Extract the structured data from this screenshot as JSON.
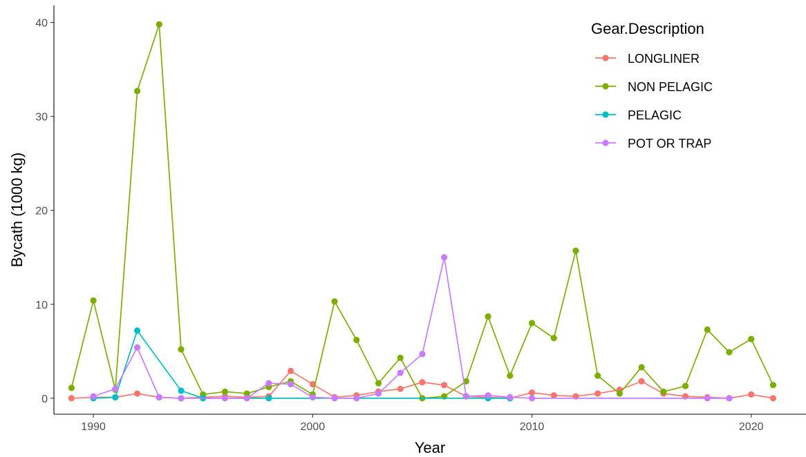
{
  "chart_data": {
    "type": "line",
    "xlabel": "Year",
    "ylabel": "Bycath (1000 kg)",
    "xlim": [
      1988.2,
      2022.5
    ],
    "ylim": [
      -1.7,
      41.8
    ],
    "x_ticks": [
      1990,
      2000,
      2010,
      2020
    ],
    "y_ticks": [
      0,
      10,
      20,
      30,
      40
    ],
    "grid": false,
    "legend": {
      "title": "Gear.Description",
      "position": "top-right"
    },
    "series": [
      {
        "name": "LONGLINER",
        "color": "#F8766D",
        "points": [
          [
            1989,
            0.0
          ],
          [
            1990,
            0.1
          ],
          [
            1991,
            0.1
          ],
          [
            1992,
            0.5
          ],
          [
            1993,
            0.1
          ],
          [
            1994,
            0.0
          ],
          [
            1995,
            0.1
          ],
          [
            1996,
            0.2
          ],
          [
            1997,
            0.1
          ],
          [
            1998,
            0.2
          ],
          [
            1999,
            2.9
          ],
          [
            2000,
            1.5
          ],
          [
            2001,
            0.1
          ],
          [
            2002,
            0.3
          ],
          [
            2003,
            0.7
          ],
          [
            2004,
            1.0
          ],
          [
            2005,
            1.7
          ],
          [
            2006,
            1.4
          ],
          [
            2007,
            0.2
          ],
          [
            2008,
            0.1
          ],
          [
            2009,
            0.0
          ],
          [
            2010,
            0.6
          ],
          [
            2011,
            0.3
          ],
          [
            2012,
            0.2
          ],
          [
            2013,
            0.5
          ],
          [
            2014,
            0.9
          ],
          [
            2015,
            1.8
          ],
          [
            2016,
            0.5
          ],
          [
            2017,
            0.2
          ],
          [
            2018,
            0.1
          ],
          [
            2019,
            0.0
          ],
          [
            2020,
            0.4
          ],
          [
            2021,
            0.0
          ]
        ]
      },
      {
        "name": "NON PELAGIC",
        "color": "#7CAE00",
        "points": [
          [
            1989,
            1.1
          ],
          [
            1990,
            10.4
          ],
          [
            1991,
            0.9
          ],
          [
            1992,
            32.7
          ],
          [
            1993,
            39.8
          ],
          [
            1994,
            5.2
          ],
          [
            1995,
            0.4
          ],
          [
            1996,
            0.7
          ],
          [
            1997,
            0.5
          ],
          [
            1998,
            1.2
          ],
          [
            1999,
            1.8
          ],
          [
            2000,
            0.4
          ],
          [
            2001,
            10.3
          ],
          [
            2002,
            6.2
          ],
          [
            2003,
            1.6
          ],
          [
            2004,
            4.3
          ],
          [
            2005,
            0.0
          ],
          [
            2006,
            0.2
          ],
          [
            2007,
            1.8
          ],
          [
            2008,
            8.7
          ],
          [
            2009,
            2.4
          ],
          [
            2010,
            8.0
          ],
          [
            2011,
            6.4
          ],
          [
            2012,
            15.7
          ],
          [
            2013,
            2.4
          ],
          [
            2014,
            0.5
          ],
          [
            2015,
            3.3
          ],
          [
            2016,
            0.7
          ],
          [
            2017,
            1.3
          ],
          [
            2018,
            7.3
          ],
          [
            2019,
            4.9
          ],
          [
            2020,
            6.3
          ],
          [
            2021,
            1.4
          ]
        ]
      },
      {
        "name": "PELAGIC",
        "color": "#00BFC4",
        "points": [
          [
            1990,
            0.0
          ],
          [
            1991,
            0.1
          ],
          [
            1992,
            7.2
          ],
          [
            1994,
            0.8
          ],
          [
            1995,
            0.0
          ],
          [
            1998,
            0.0
          ],
          [
            2008,
            0.0
          ],
          [
            2009,
            0.0
          ]
        ]
      },
      {
        "name": "POT OR TRAP",
        "color": "#C77CFF",
        "points": [
          [
            1990,
            0.2
          ],
          [
            1991,
            1.0
          ],
          [
            1992,
            5.4
          ],
          [
            1993,
            0.1
          ],
          [
            1994,
            0.0
          ],
          [
            1996,
            0.0
          ],
          [
            1997,
            0.0
          ],
          [
            1998,
            1.6
          ],
          [
            1999,
            1.5
          ],
          [
            2000,
            0.1
          ],
          [
            2001,
            0.0
          ],
          [
            2002,
            0.0
          ],
          [
            2003,
            0.5
          ],
          [
            2004,
            2.7
          ],
          [
            2005,
            4.7
          ],
          [
            2006,
            15.0
          ],
          [
            2007,
            0.2
          ],
          [
            2008,
            0.3
          ],
          [
            2009,
            0.1
          ],
          [
            2010,
            0.0
          ],
          [
            2018,
            0.0
          ],
          [
            2019,
            0.0
          ]
        ]
      }
    ]
  }
}
